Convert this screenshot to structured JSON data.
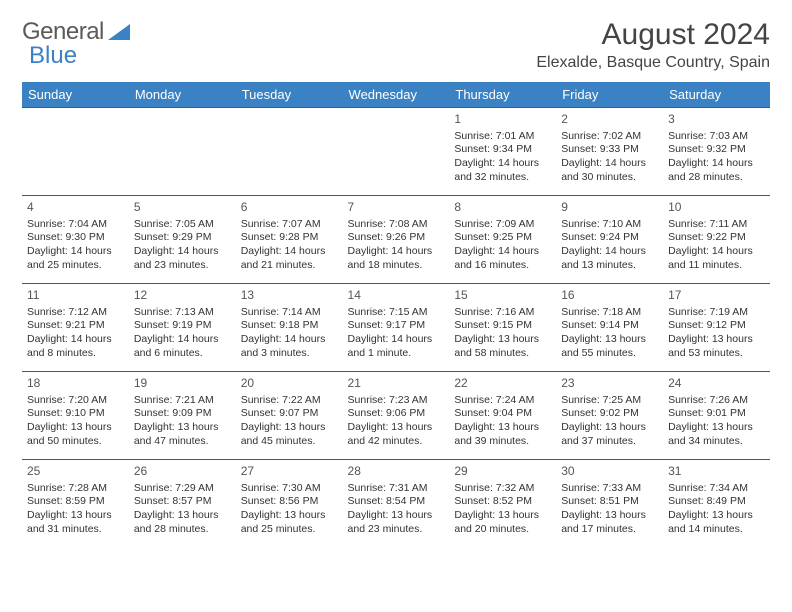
{
  "brand": {
    "part1": "General",
    "part2": "Blue"
  },
  "title": "August 2024",
  "location": "Elexalde, Basque Country, Spain",
  "dow": [
    "Sunday",
    "Monday",
    "Tuesday",
    "Wednesday",
    "Thursday",
    "Friday",
    "Saturday"
  ],
  "colors": {
    "header_bg": "#3b82c4",
    "header_text": "#ffffff",
    "border": "#3b5a7a",
    "text": "#333333",
    "title_text": "#444444"
  },
  "fonts": {
    "title_size": 30,
    "location_size": 16,
    "dow_size": 13,
    "cell_size": 10.5
  },
  "weeks": [
    [
      null,
      null,
      null,
      null,
      {
        "n": "1",
        "sr": "Sunrise: 7:01 AM",
        "ss": "Sunset: 9:34 PM",
        "d1": "Daylight: 14 hours",
        "d2": "and 32 minutes."
      },
      {
        "n": "2",
        "sr": "Sunrise: 7:02 AM",
        "ss": "Sunset: 9:33 PM",
        "d1": "Daylight: 14 hours",
        "d2": "and 30 minutes."
      },
      {
        "n": "3",
        "sr": "Sunrise: 7:03 AM",
        "ss": "Sunset: 9:32 PM",
        "d1": "Daylight: 14 hours",
        "d2": "and 28 minutes."
      }
    ],
    [
      {
        "n": "4",
        "sr": "Sunrise: 7:04 AM",
        "ss": "Sunset: 9:30 PM",
        "d1": "Daylight: 14 hours",
        "d2": "and 25 minutes."
      },
      {
        "n": "5",
        "sr": "Sunrise: 7:05 AM",
        "ss": "Sunset: 9:29 PM",
        "d1": "Daylight: 14 hours",
        "d2": "and 23 minutes."
      },
      {
        "n": "6",
        "sr": "Sunrise: 7:07 AM",
        "ss": "Sunset: 9:28 PM",
        "d1": "Daylight: 14 hours",
        "d2": "and 21 minutes."
      },
      {
        "n": "7",
        "sr": "Sunrise: 7:08 AM",
        "ss": "Sunset: 9:26 PM",
        "d1": "Daylight: 14 hours",
        "d2": "and 18 minutes."
      },
      {
        "n": "8",
        "sr": "Sunrise: 7:09 AM",
        "ss": "Sunset: 9:25 PM",
        "d1": "Daylight: 14 hours",
        "d2": "and 16 minutes."
      },
      {
        "n": "9",
        "sr": "Sunrise: 7:10 AM",
        "ss": "Sunset: 9:24 PM",
        "d1": "Daylight: 14 hours",
        "d2": "and 13 minutes."
      },
      {
        "n": "10",
        "sr": "Sunrise: 7:11 AM",
        "ss": "Sunset: 9:22 PM",
        "d1": "Daylight: 14 hours",
        "d2": "and 11 minutes."
      }
    ],
    [
      {
        "n": "11",
        "sr": "Sunrise: 7:12 AM",
        "ss": "Sunset: 9:21 PM",
        "d1": "Daylight: 14 hours",
        "d2": "and 8 minutes."
      },
      {
        "n": "12",
        "sr": "Sunrise: 7:13 AM",
        "ss": "Sunset: 9:19 PM",
        "d1": "Daylight: 14 hours",
        "d2": "and 6 minutes."
      },
      {
        "n": "13",
        "sr": "Sunrise: 7:14 AM",
        "ss": "Sunset: 9:18 PM",
        "d1": "Daylight: 14 hours",
        "d2": "and 3 minutes."
      },
      {
        "n": "14",
        "sr": "Sunrise: 7:15 AM",
        "ss": "Sunset: 9:17 PM",
        "d1": "Daylight: 14 hours",
        "d2": "and 1 minute."
      },
      {
        "n": "15",
        "sr": "Sunrise: 7:16 AM",
        "ss": "Sunset: 9:15 PM",
        "d1": "Daylight: 13 hours",
        "d2": "and 58 minutes."
      },
      {
        "n": "16",
        "sr": "Sunrise: 7:18 AM",
        "ss": "Sunset: 9:14 PM",
        "d1": "Daylight: 13 hours",
        "d2": "and 55 minutes."
      },
      {
        "n": "17",
        "sr": "Sunrise: 7:19 AM",
        "ss": "Sunset: 9:12 PM",
        "d1": "Daylight: 13 hours",
        "d2": "and 53 minutes."
      }
    ],
    [
      {
        "n": "18",
        "sr": "Sunrise: 7:20 AM",
        "ss": "Sunset: 9:10 PM",
        "d1": "Daylight: 13 hours",
        "d2": "and 50 minutes."
      },
      {
        "n": "19",
        "sr": "Sunrise: 7:21 AM",
        "ss": "Sunset: 9:09 PM",
        "d1": "Daylight: 13 hours",
        "d2": "and 47 minutes."
      },
      {
        "n": "20",
        "sr": "Sunrise: 7:22 AM",
        "ss": "Sunset: 9:07 PM",
        "d1": "Daylight: 13 hours",
        "d2": "and 45 minutes."
      },
      {
        "n": "21",
        "sr": "Sunrise: 7:23 AM",
        "ss": "Sunset: 9:06 PM",
        "d1": "Daylight: 13 hours",
        "d2": "and 42 minutes."
      },
      {
        "n": "22",
        "sr": "Sunrise: 7:24 AM",
        "ss": "Sunset: 9:04 PM",
        "d1": "Daylight: 13 hours",
        "d2": "and 39 minutes."
      },
      {
        "n": "23",
        "sr": "Sunrise: 7:25 AM",
        "ss": "Sunset: 9:02 PM",
        "d1": "Daylight: 13 hours",
        "d2": "and 37 minutes."
      },
      {
        "n": "24",
        "sr": "Sunrise: 7:26 AM",
        "ss": "Sunset: 9:01 PM",
        "d1": "Daylight: 13 hours",
        "d2": "and 34 minutes."
      }
    ],
    [
      {
        "n": "25",
        "sr": "Sunrise: 7:28 AM",
        "ss": "Sunset: 8:59 PM",
        "d1": "Daylight: 13 hours",
        "d2": "and 31 minutes."
      },
      {
        "n": "26",
        "sr": "Sunrise: 7:29 AM",
        "ss": "Sunset: 8:57 PM",
        "d1": "Daylight: 13 hours",
        "d2": "and 28 minutes."
      },
      {
        "n": "27",
        "sr": "Sunrise: 7:30 AM",
        "ss": "Sunset: 8:56 PM",
        "d1": "Daylight: 13 hours",
        "d2": "and 25 minutes."
      },
      {
        "n": "28",
        "sr": "Sunrise: 7:31 AM",
        "ss": "Sunset: 8:54 PM",
        "d1": "Daylight: 13 hours",
        "d2": "and 23 minutes."
      },
      {
        "n": "29",
        "sr": "Sunrise: 7:32 AM",
        "ss": "Sunset: 8:52 PM",
        "d1": "Daylight: 13 hours",
        "d2": "and 20 minutes."
      },
      {
        "n": "30",
        "sr": "Sunrise: 7:33 AM",
        "ss": "Sunset: 8:51 PM",
        "d1": "Daylight: 13 hours",
        "d2": "and 17 minutes."
      },
      {
        "n": "31",
        "sr": "Sunrise: 7:34 AM",
        "ss": "Sunset: 8:49 PM",
        "d1": "Daylight: 13 hours",
        "d2": "and 14 minutes."
      }
    ]
  ]
}
